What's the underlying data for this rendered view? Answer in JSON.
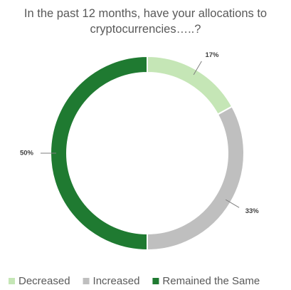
{
  "chart_data": {
    "type": "donut",
    "title": "In the past 12 months, have your allocations to cryptocurrencies…..?",
    "categories": [
      "Decreased",
      "Increased",
      "Remained the Same"
    ],
    "values": [
      17,
      33,
      50
    ],
    "value_labels": [
      "17%",
      "33%",
      "50%"
    ],
    "colors": [
      "#c5e6b6",
      "#bfbfbf",
      "#1f7a31"
    ],
    "legend": "bottom"
  }
}
